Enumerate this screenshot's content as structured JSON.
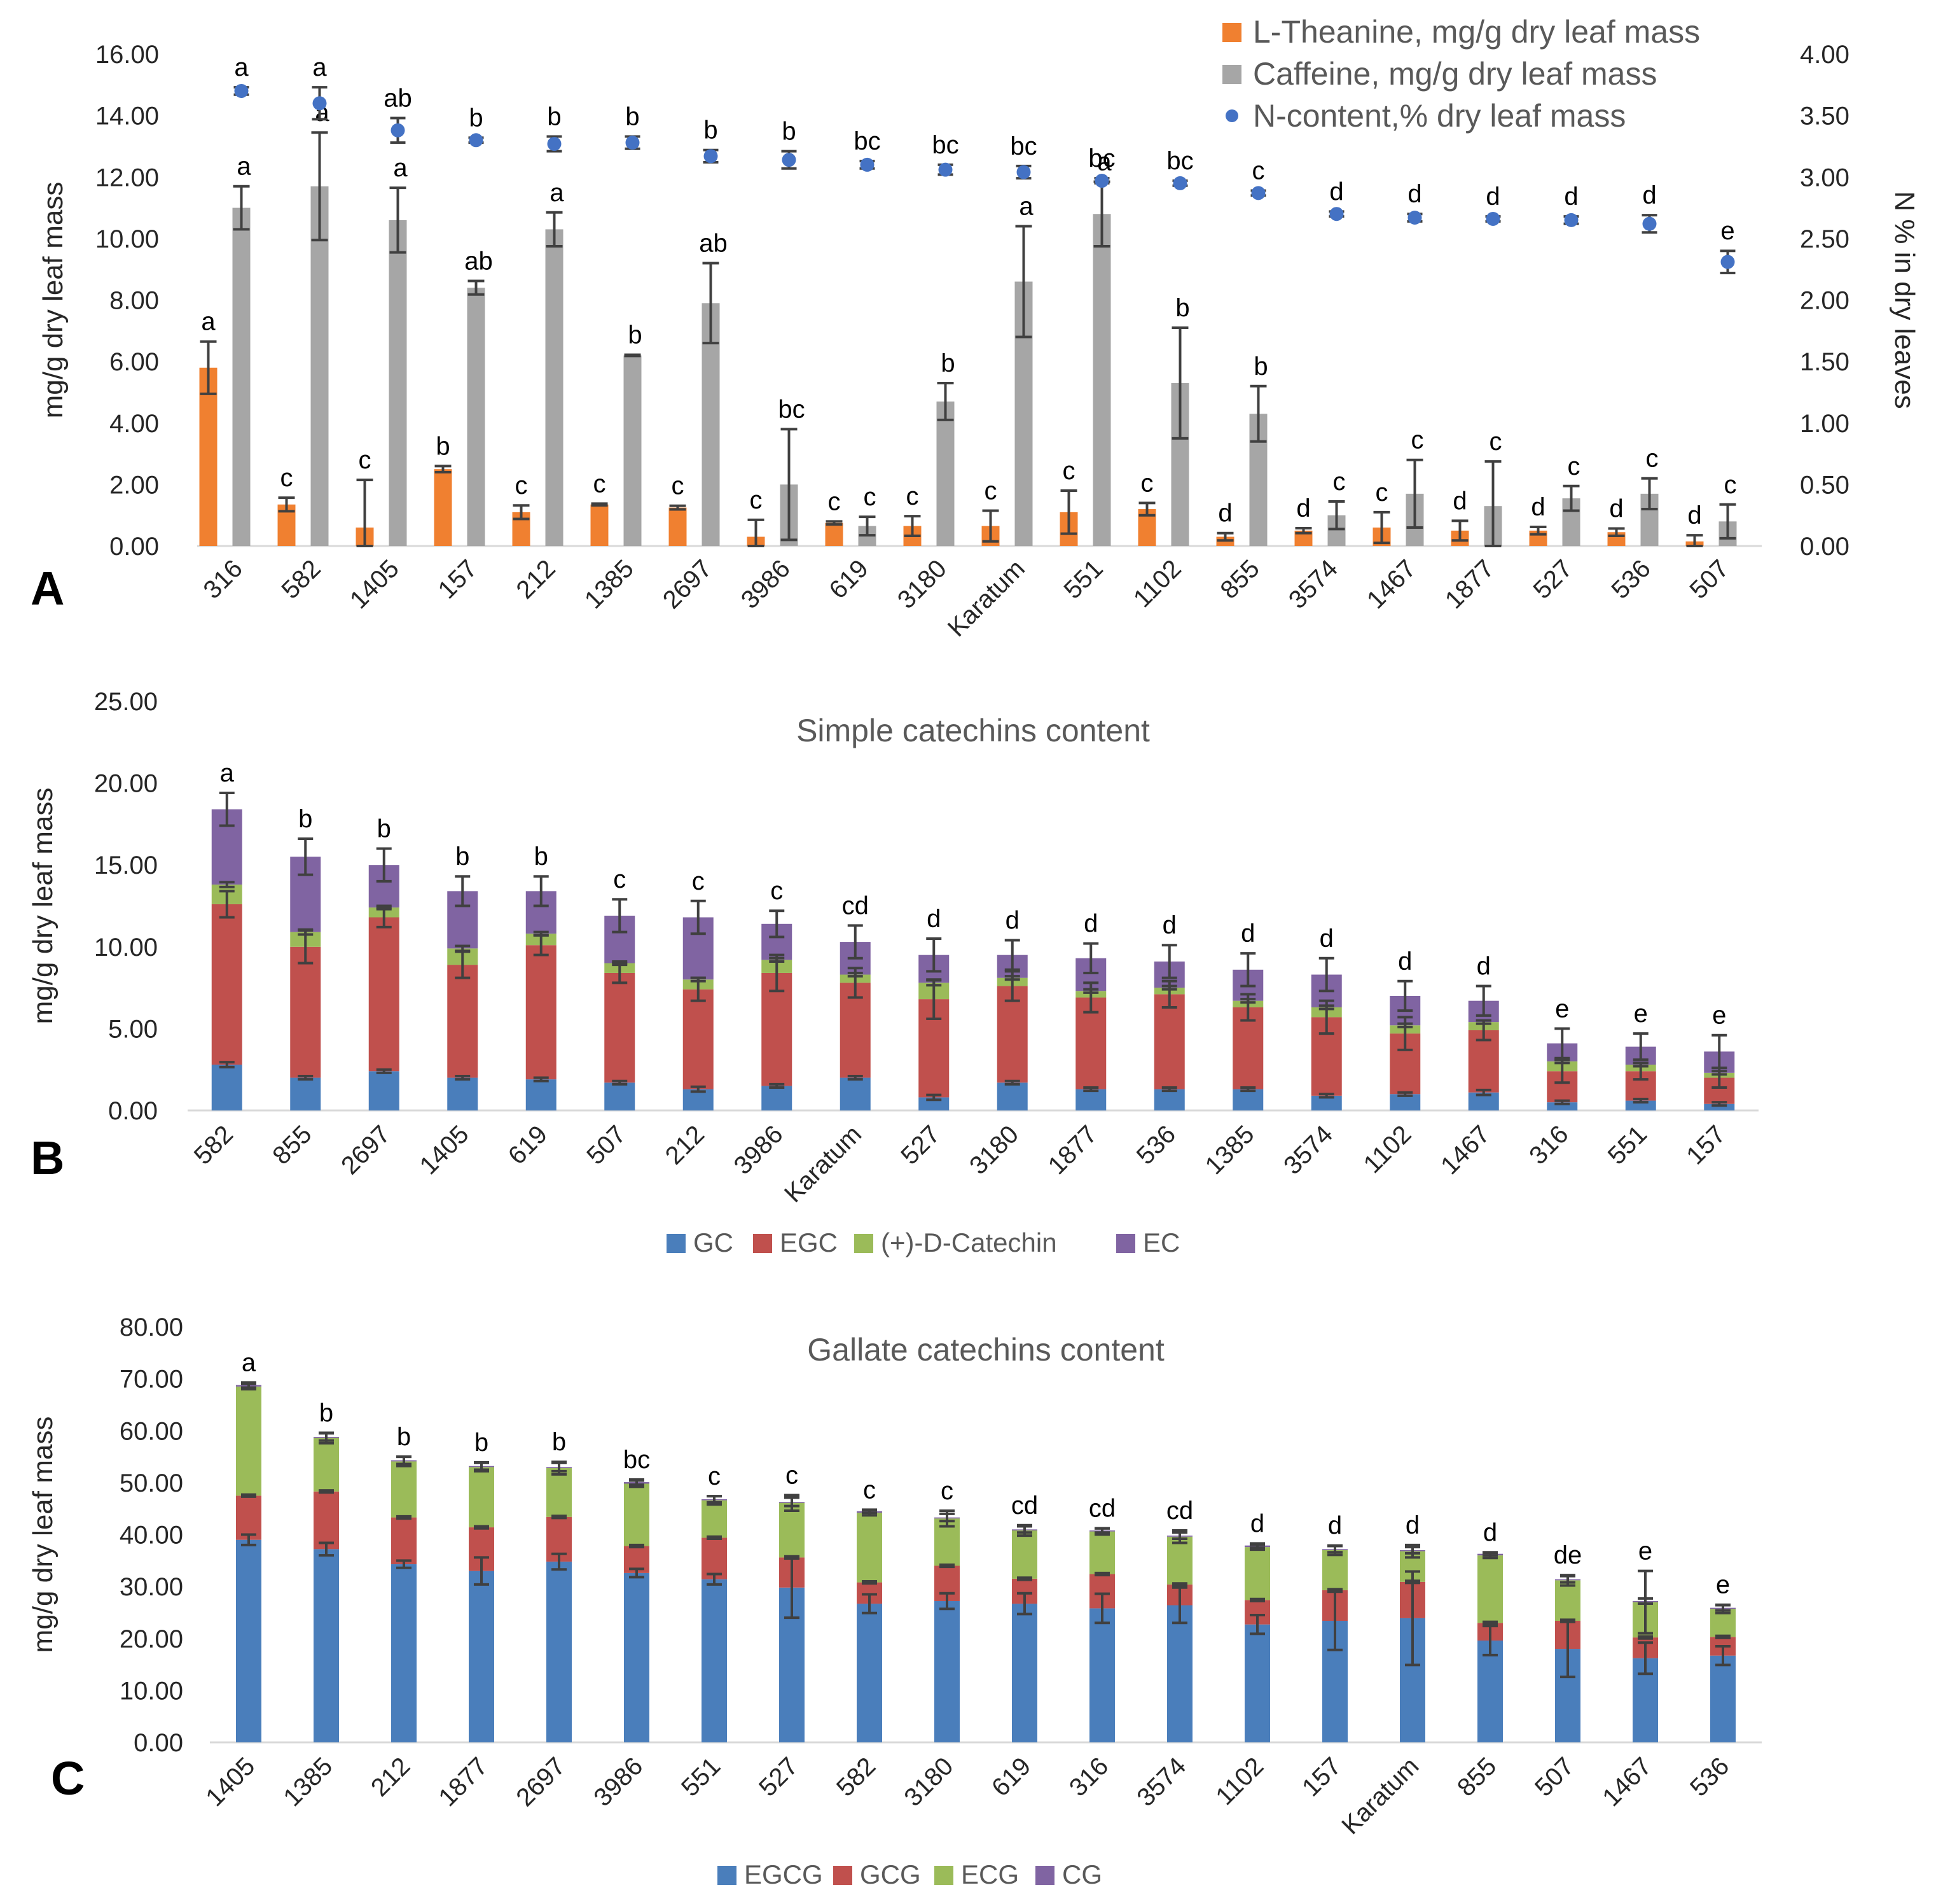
{
  "figure": {
    "panel_letters": [
      "A",
      "B",
      "C"
    ]
  },
  "colors": {
    "theanine": "#F08030",
    "caffeine": "#A6A6A6",
    "ncontent": "#4472C4",
    "gc": "#4A7EBB",
    "egc": "#C0504D",
    "catechin": "#9BBB59",
    "ec": "#8064A2",
    "egcg": "#4A7EBB",
    "gcg": "#C0504D",
    "ecg": "#9BBB59",
    "cg": "#8064A2",
    "axis_text": "#262626",
    "title_text": "#595959",
    "errbar": "#404040"
  },
  "chart_data": [
    {
      "id": "A",
      "type": "bar",
      "panel": "A",
      "title": "",
      "ylabel": "mg/g dry leaf mass",
      "y2label": "N % in dry leaves",
      "ylim": [
        0,
        16
      ],
      "yticks": [
        "0.00",
        "2.00",
        "4.00",
        "6.00",
        "8.00",
        "10.00",
        "12.00",
        "14.00",
        "16.00"
      ],
      "y2lim": [
        0,
        4
      ],
      "y2ticks": [
        "0.00",
        "0.50",
        "1.00",
        "1.50",
        "2.00",
        "2.50",
        "3.00",
        "3.50",
        "4.00"
      ],
      "legend_position": "top-right",
      "categories": [
        "316",
        "582",
        "1405",
        "157",
        "212",
        "1385",
        "2697",
        "3986",
        "619",
        "3180",
        "Karatum",
        "551",
        "1102",
        "855",
        "3574",
        "1467",
        "1877",
        "527",
        "536",
        "507"
      ],
      "series": [
        {
          "name": "L-Theanine, mg/g dry leaf mass",
          "kind": "bar",
          "color_key": "theanine",
          "values": [
            5.8,
            1.35,
            0.6,
            2.5,
            1.1,
            1.35,
            1.25,
            0.3,
            0.75,
            0.65,
            0.65,
            1.1,
            1.2,
            0.3,
            0.5,
            0.6,
            0.5,
            0.5,
            0.45,
            0.15
          ],
          "errors": [
            0.85,
            0.22,
            1.55,
            0.1,
            0.22,
            0.03,
            0.06,
            0.55,
            0.05,
            0.32,
            0.5,
            0.7,
            0.2,
            0.12,
            0.08,
            0.5,
            0.32,
            0.12,
            0.12,
            0.2
          ],
          "labels": [
            "a",
            "c",
            "c",
            "b",
            "c",
            "c",
            "c",
            "c",
            "c",
            "c",
            "c",
            "c",
            "c",
            "d",
            "d",
            "c",
            "d",
            "d",
            "d",
            "d"
          ]
        },
        {
          "name": "Caffeine, mg/g dry leaf mass",
          "kind": "bar",
          "color_key": "caffeine",
          "values": [
            11.0,
            11.7,
            10.6,
            8.4,
            10.3,
            6.2,
            7.9,
            2.0,
            0.65,
            4.7,
            8.6,
            10.8,
            5.3,
            4.3,
            1.0,
            1.7,
            1.3,
            1.55,
            1.7,
            0.8
          ],
          "errors": [
            0.7,
            1.75,
            1.05,
            0.22,
            0.55,
            0.02,
            1.3,
            1.8,
            0.3,
            0.6,
            1.8,
            1.05,
            1.8,
            0.9,
            0.45,
            1.1,
            1.45,
            0.4,
            0.5,
            0.55
          ],
          "labels": [
            "a",
            "a",
            "a",
            "ab",
            "a",
            "b",
            "ab",
            "bc",
            "c",
            "b",
            "a",
            "a",
            "b",
            "b",
            "c",
            "c",
            "c",
            "c",
            "c",
            "c"
          ]
        },
        {
          "name": "N-content,% dry leaf mass",
          "kind": "point",
          "axis": "right",
          "color_key": "ncontent",
          "values": [
            3.7,
            3.6,
            3.38,
            3.3,
            3.27,
            3.28,
            3.17,
            3.14,
            3.1,
            3.06,
            3.04,
            2.97,
            2.95,
            2.87,
            2.7,
            2.67,
            2.66,
            2.65,
            2.62,
            2.31
          ],
          "errors": [
            0.03,
            0.13,
            0.1,
            0.02,
            0.06,
            0.05,
            0.05,
            0.07,
            0.03,
            0.04,
            0.05,
            0.02,
            0.02,
            0.02,
            0.02,
            0.03,
            0.02,
            0.03,
            0.07,
            0.09
          ],
          "labels": [
            "a",
            "a",
            "ab",
            "b",
            "b",
            "b",
            "b",
            "b",
            "bc",
            "bc",
            "bc",
            "bc",
            "bc",
            "c",
            "d",
            "d",
            "d",
            "d",
            "d",
            "e"
          ]
        }
      ]
    },
    {
      "id": "B",
      "type": "bar",
      "stacked": true,
      "panel": "B",
      "title": "Simple catechins content",
      "ylabel": "mg/g dry leaf mass",
      "ylim": [
        0,
        25
      ],
      "yticks": [
        "0.00",
        "5.00",
        "10.00",
        "15.00",
        "20.00",
        "25.00"
      ],
      "legend_position": "bottom",
      "categories": [
        "582",
        "855",
        "2697",
        "1405",
        "619",
        "507",
        "212",
        "3986",
        "Karatum",
        "527",
        "3180",
        "1877",
        "536",
        "1385",
        "3574",
        "1102",
        "1467",
        "316",
        "551",
        "157"
      ],
      "series": [
        {
          "name": "GC",
          "color_key": "gc",
          "values": [
            2.8,
            2.0,
            2.4,
            2.0,
            1.9,
            1.7,
            1.3,
            1.5,
            2.0,
            0.8,
            1.7,
            1.3,
            1.3,
            1.3,
            0.9,
            1.0,
            1.1,
            0.5,
            0.6,
            0.4
          ],
          "errors": [
            0.15,
            0.1,
            0.1,
            0.1,
            0.1,
            0.1,
            0.15,
            0.1,
            0.1,
            0.15,
            0.1,
            0.1,
            0.1,
            0.1,
            0.1,
            0.1,
            0.15,
            0.1,
            0.1,
            0.1
          ]
        },
        {
          "name": "EGC",
          "color_key": "egc",
          "values": [
            9.8,
            8.0,
            9.4,
            6.9,
            8.2,
            6.7,
            6.1,
            6.9,
            5.8,
            6.0,
            5.9,
            5.6,
            5.8,
            5.0,
            4.8,
            3.7,
            3.8,
            1.9,
            1.8,
            1.6
          ],
          "errors": [
            0.8,
            1.0,
            0.6,
            0.8,
            0.6,
            0.6,
            0.7,
            1.1,
            0.9,
            1.2,
            0.9,
            0.9,
            0.8,
            0.8,
            1.0,
            1.0,
            0.6,
            0.7,
            0.5,
            0.6
          ]
        },
        {
          "name": "(+)-D-Catechin",
          "color_key": "catechin",
          "values": [
            1.2,
            0.9,
            0.6,
            1.0,
            0.7,
            0.6,
            0.6,
            0.8,
            0.5,
            1.0,
            0.5,
            0.4,
            0.4,
            0.4,
            0.6,
            0.5,
            0.5,
            0.6,
            0.4,
            0.3
          ],
          "errors": [
            0.15,
            0.15,
            0.1,
            0.15,
            0.1,
            0.1,
            0.1,
            0.1,
            0.1,
            0.15,
            0.1,
            0.1,
            0.1,
            0.1,
            0.1,
            0.1,
            0.1,
            0.1,
            0.1,
            0.1
          ]
        },
        {
          "name": "EC",
          "color_key": "ec",
          "values": [
            4.6,
            4.6,
            2.6,
            3.5,
            2.6,
            2.9,
            3.8,
            2.2,
            2.0,
            1.7,
            1.4,
            2.0,
            1.6,
            1.9,
            2.0,
            1.8,
            1.3,
            1.1,
            1.1,
            1.3
          ],
          "errors": [
            1.0,
            1.1,
            1.0,
            0.9,
            0.9,
            1.0,
            1.0,
            0.8,
            1.0,
            1.0,
            0.9,
            0.9,
            1.0,
            1.0,
            1.0,
            0.9,
            0.9,
            0.9,
            0.8,
            1.0
          ]
        }
      ],
      "letters": [
        "a",
        "b",
        "b",
        "b",
        "b",
        "c",
        "c",
        "c",
        "cd",
        "d",
        "d",
        "d",
        "d",
        "d",
        "d",
        "d",
        "d",
        "e",
        "e",
        "e"
      ]
    },
    {
      "id": "C",
      "type": "bar",
      "stacked": true,
      "panel": "C",
      "title": "Gallate catechins content",
      "ylabel": "mg/g dry leaf mass",
      "ylim": [
        0,
        80
      ],
      "yticks": [
        "0.00",
        "10.00",
        "20.00",
        "30.00",
        "40.00",
        "50.00",
        "60.00",
        "70.00",
        "80.00"
      ],
      "legend_position": "bottom",
      "categories": [
        "1405",
        "1385",
        "212",
        "1877",
        "2697",
        "3986",
        "551",
        "527",
        "582",
        "3180",
        "619",
        "316",
        "3574",
        "1102",
        "157",
        "Karatum",
        "855",
        "507",
        "1467",
        "536"
      ],
      "series": [
        {
          "name": "EGCG",
          "color_key": "egcg",
          "values": [
            39.0,
            37.2,
            34.3,
            33.0,
            34.8,
            32.6,
            31.4,
            29.8,
            26.7,
            27.2,
            26.7,
            25.8,
            26.4,
            22.7,
            23.4,
            23.9,
            19.6,
            18.0,
            16.2,
            16.7
          ],
          "errors": [
            1.0,
            1.2,
            0.7,
            2.6,
            1.5,
            0.8,
            1.0,
            5.8,
            1.8,
            1.5,
            2.0,
            2.8,
            3.4,
            1.8,
            5.6,
            9.0,
            2.8,
            5.4,
            3.0,
            1.8
          ]
        },
        {
          "name": "GCG",
          "color_key": "gcg",
          "values": [
            8.5,
            11.1,
            9.0,
            8.4,
            8.6,
            5.2,
            8.0,
            5.8,
            4.1,
            6.8,
            4.8,
            6.6,
            4.0,
            4.7,
            5.9,
            7.0,
            3.4,
            5.4,
            4.0,
            3.6
          ],
          "errors": [
            0.2,
            0.2,
            0.2,
            0.2,
            0.2,
            0.2,
            0.2,
            0.2,
            0.2,
            0.2,
            0.2,
            0.2,
            0.2,
            0.2,
            0.2,
            0.2,
            0.2,
            0.2,
            0.2,
            0.2
          ]
        },
        {
          "name": "ECG",
          "color_key": "ecg",
          "values": [
            21.0,
            10.3,
            10.8,
            11.6,
            9.4,
            12.0,
            7.2,
            10.5,
            13.4,
            9.1,
            9.3,
            8.2,
            9.2,
            10.2,
            7.7,
            5.9,
            13.0,
            7.8,
            6.8,
            5.4
          ],
          "errors": [
            0.5,
            1.0,
            0.9,
            0.8,
            1.2,
            0.6,
            0.8,
            1.5,
            0.5,
            1.5,
            1.0,
            0.6,
            1.2,
            0.5,
            0.9,
            1.2,
            0.5,
            1.0,
            6.0,
            0.8
          ]
        },
        {
          "name": "CG",
          "color_key": "cg",
          "values": [
            0.3,
            0.2,
            0.2,
            0.2,
            0.2,
            0.3,
            0.2,
            0.2,
            0.3,
            0.2,
            0.2,
            0.2,
            0.2,
            0.3,
            0.2,
            0.2,
            0.3,
            0.2,
            0.2,
            0.2
          ],
          "errors": [
            0.5,
            0.7,
            0.7,
            0.7,
            0.8,
            0.5,
            0.6,
            0.8,
            0.3,
            0.7,
            0.6,
            0.4,
            0.6,
            0.4,
            0.6,
            0.6,
            0.3,
            0.6,
            0.5,
            0.5
          ]
        }
      ],
      "letters": [
        "a",
        "b",
        "b",
        "b",
        "b",
        "bc",
        "c",
        "c",
        "c",
        "c",
        "cd",
        "cd",
        "cd",
        "d",
        "d",
        "d",
        "d",
        "de",
        "e",
        "e"
      ]
    }
  ]
}
